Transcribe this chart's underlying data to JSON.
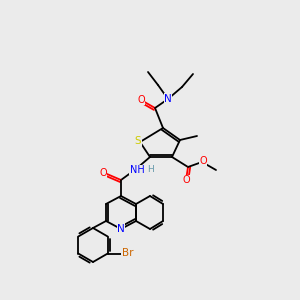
{
  "background_color": "#ebebeb",
  "colors": {
    "C": "#000000",
    "N": "#0000ff",
    "O": "#ff0000",
    "S": "#cccc00",
    "Br": "#cc6600",
    "H": "#6699aa"
  },
  "lw": 1.3,
  "fs": 7.0
}
